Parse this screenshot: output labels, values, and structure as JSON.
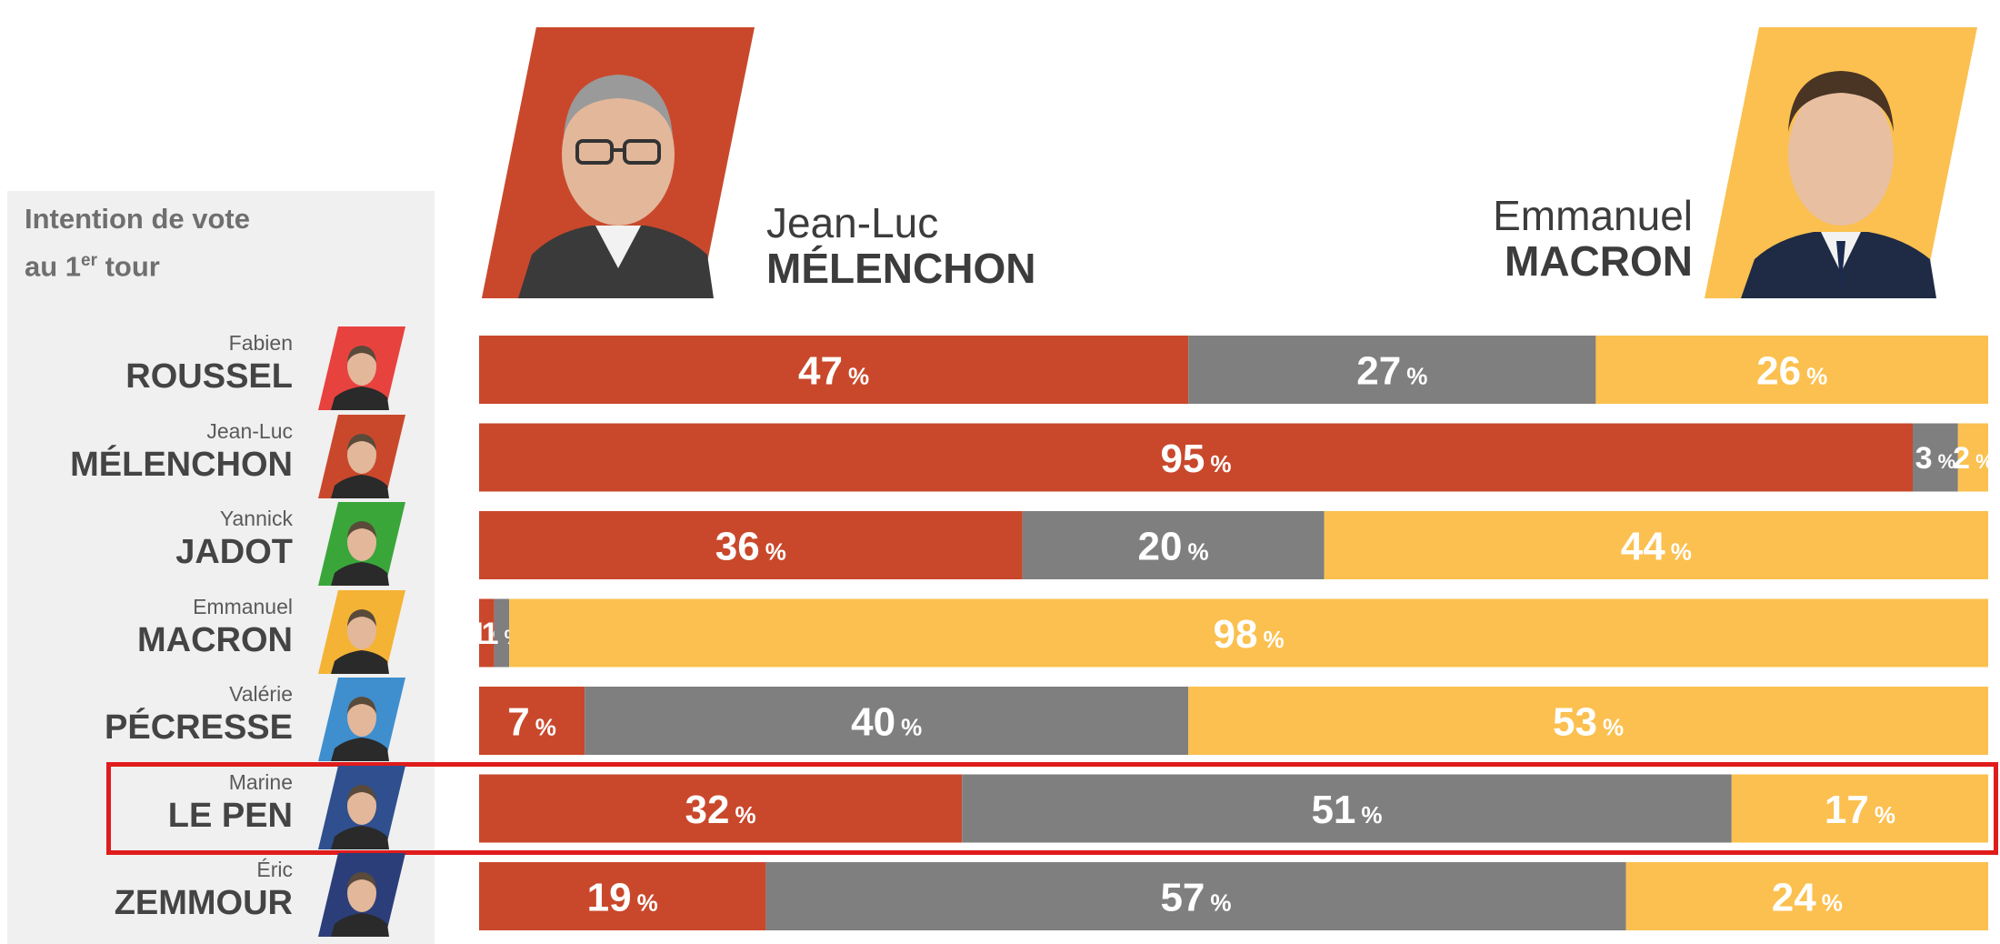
{
  "panel": {
    "title_line1": "Intention de vote",
    "title_line2_prefix": "au 1",
    "title_line2_sup": "er",
    "title_line2_suffix": " tour"
  },
  "header": {
    "left_candidate": {
      "first": "Jean-Luc",
      "last": "MÉLENCHON"
    },
    "right_candidate": {
      "first": "Emmanuel",
      "last": "MACRON"
    }
  },
  "colors": {
    "melenchon": "#c9482c",
    "abstention": "#7f7f7f",
    "macron": "#fbc04f",
    "highlight": "#e01b1b",
    "panel": "#f0f0f0"
  },
  "icons": {
    "candidate_photos": "portrait-icon"
  },
  "chart_data": {
    "type": "bar",
    "orientation": "horizontal",
    "stacked": true,
    "normalized": true,
    "unit": "%",
    "categories_first_names": [
      "Fabien",
      "Jean-Luc",
      "Yannick",
      "Emmanuel",
      "Valérie",
      "Marine",
      "Éric"
    ],
    "categories": [
      "ROUSSEL",
      "MÉLENCHON",
      "JADOT",
      "MACRON",
      "PÉCRESSE",
      "LE PEN",
      "ZEMMOUR"
    ],
    "category_colors": [
      "#e8423f",
      "#c9482c",
      "#3aa63a",
      "#f5b335",
      "#3f8fcf",
      "#2f4f8f",
      "#2c3e7a"
    ],
    "series": [
      {
        "name": "MÉLENCHON",
        "values": [
          47,
          95,
          36,
          1,
          7,
          32,
          19
        ]
      },
      {
        "values": [
          27,
          3,
          20,
          1,
          40,
          51,
          57
        ]
      },
      {
        "name": "MACRON",
        "values": [
          26,
          2,
          44,
          98,
          53,
          17,
          24
        ]
      }
    ],
    "highlighted_category": "LE PEN",
    "xlim": [
      0,
      100
    ]
  }
}
